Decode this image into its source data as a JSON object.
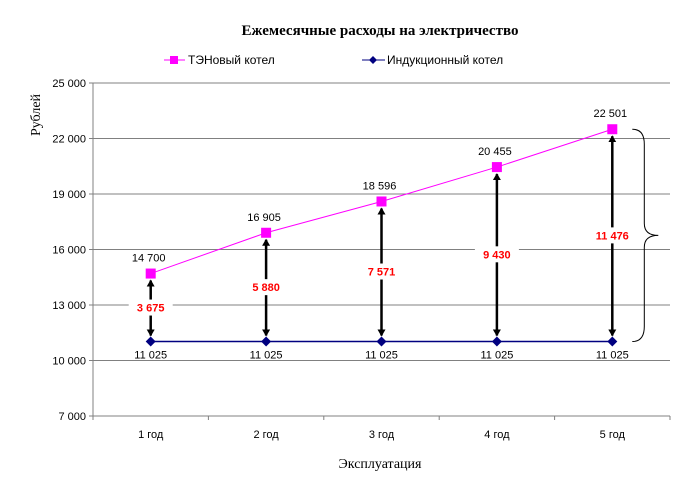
{
  "chart_data": {
    "type": "line",
    "title": "Ежемесячные расходы на электричество",
    "xlabel": "Эксплуатация",
    "ylabel": "Рублей",
    "categories": [
      "1 год",
      "2 год",
      "3 год",
      "4 год",
      "5 год"
    ],
    "ylim": [
      7000,
      25000
    ],
    "yticks": [
      7000,
      10000,
      13000,
      16000,
      19000,
      22000,
      25000
    ],
    "ytick_labels": [
      "7 000",
      "10 000",
      "13 000",
      "16 000",
      "19 000",
      "22 000",
      "25 000"
    ],
    "grid": true,
    "legend_position": "top",
    "series": [
      {
        "name": "ТЭНовый котел",
        "values": [
          14700,
          16905,
          18596,
          20455,
          22501
        ],
        "labels": [
          "14 700",
          "16 905",
          "18 596",
          "20 455",
          "22 501"
        ],
        "color": "#ff00ff",
        "marker": "square"
      },
      {
        "name": "Индукционный котел",
        "values": [
          11025,
          11025,
          11025,
          11025,
          11025
        ],
        "labels": [
          "11 025",
          "11 025",
          "11 025",
          "11 025",
          "11 025"
        ],
        "color": "#000080",
        "marker": "diamond"
      }
    ],
    "differences": {
      "values": [
        3675,
        5880,
        7571,
        9430,
        11476
      ],
      "labels": [
        "3 675",
        "5 880",
        "7 571",
        "9 430",
        "11 476"
      ],
      "color": "#ff0000"
    }
  }
}
